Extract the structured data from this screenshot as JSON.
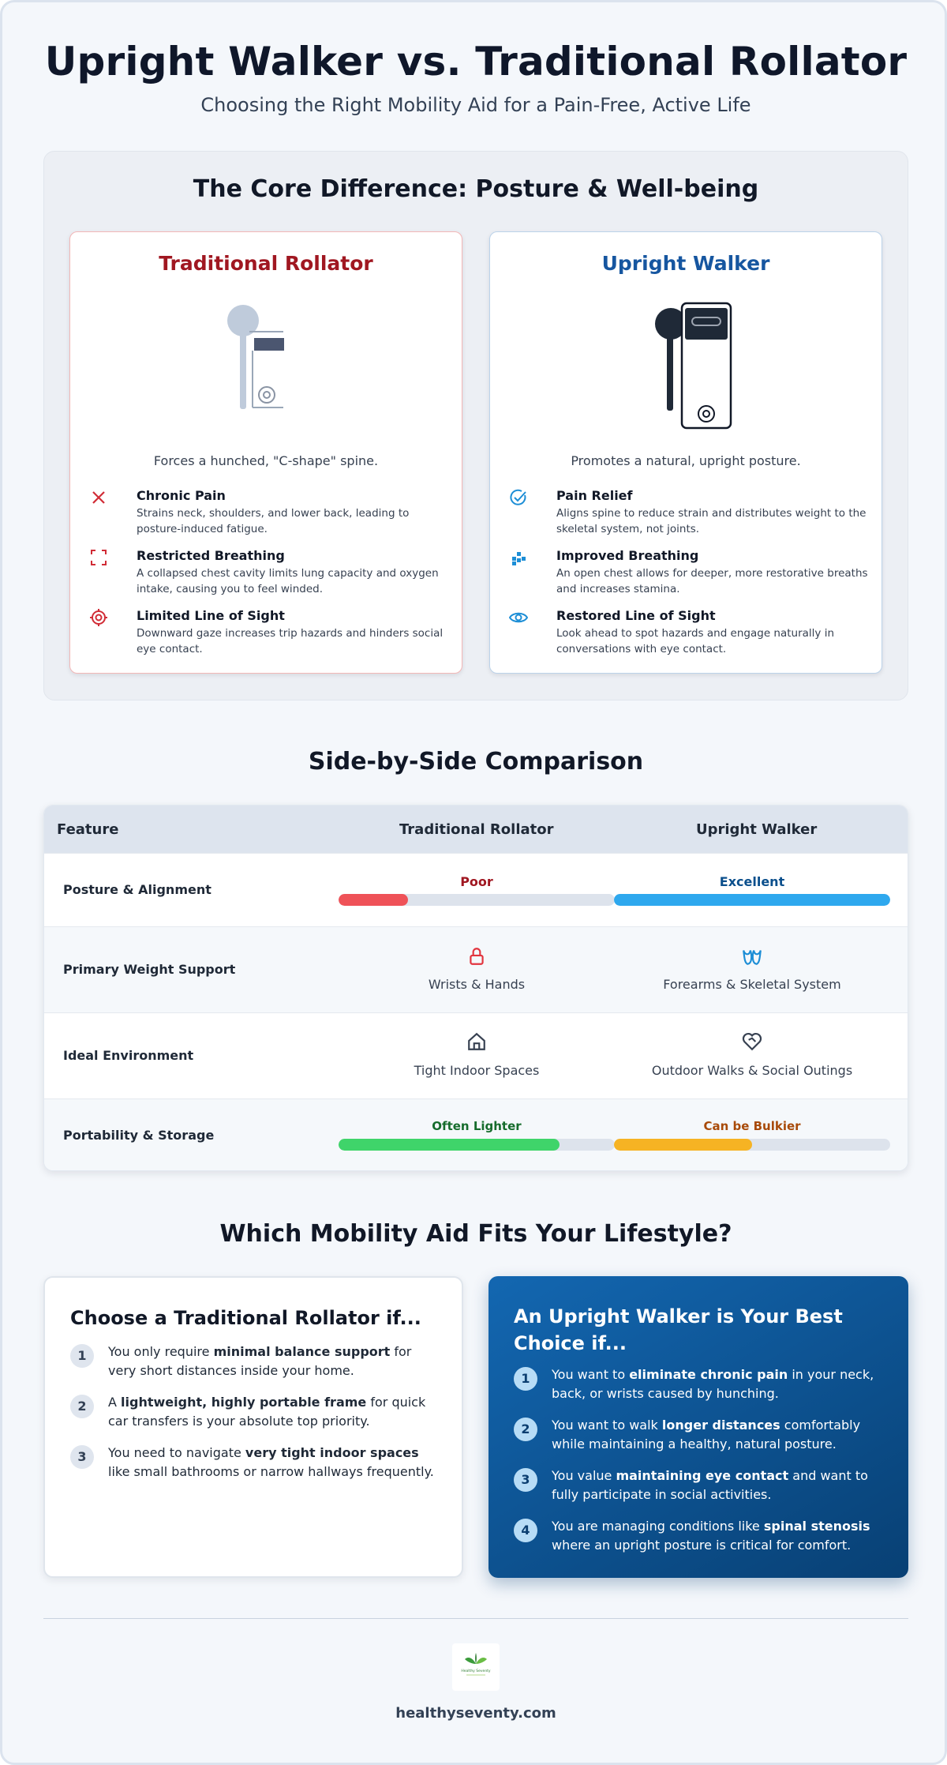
{
  "header": {
    "title": "Upright Walker vs. Traditional Rollator",
    "subtitle": "Choosing the Right Mobility Aid for a Pain-Free, Active Life"
  },
  "core": {
    "title": "The Core Difference: Posture & Well-being",
    "rollator": {
      "title": "Traditional Rollator",
      "caption": "Forces a hunched, \"C-shape\" spine.",
      "points": [
        {
          "icon": "x-icon",
          "title": "Chronic Pain",
          "desc": "Strains neck, shoulders, and lower back, leading to posture-induced fatigue."
        },
        {
          "icon": "compress-icon",
          "title": "Restricted Breathing",
          "desc": "A collapsed chest cavity limits lung capacity and oxygen intake, causing you to feel winded."
        },
        {
          "icon": "eye-slash-icon",
          "title": "Limited Line of Sight",
          "desc": "Downward gaze increases trip hazards and hinders social eye contact."
        }
      ]
    },
    "upright": {
      "title": "Upright Walker",
      "caption": "Promotes a natural, upright posture.",
      "points": [
        {
          "icon": "check-circle-icon",
          "title": "Pain Relief",
          "desc": "Aligns spine to reduce strain and distributes weight to the skeletal system, not joints."
        },
        {
          "icon": "lungs-icon",
          "title": "Improved Breathing",
          "desc": "An open chest allows for deeper, more restorative breaths and increases stamina."
        },
        {
          "icon": "eye-icon",
          "title": "Restored Line of Sight",
          "desc": "Look ahead to spot hazards and engage naturally in conversations with eye contact."
        }
      ]
    }
  },
  "comparison": {
    "title": "Side-by-Side Comparison",
    "headers": {
      "feature": "Feature",
      "rollator": "Traditional Rollator",
      "upright": "Upright Walker"
    },
    "rows": {
      "posture": {
        "label": "Posture & Alignment",
        "rollator": {
          "text": "Poor",
          "level": 0.25,
          "color": "#ef5258",
          "text_color": "#a01721"
        },
        "upright": {
          "text": "Excellent",
          "level": 1.0,
          "color": "#2ea8ee",
          "text_color": "#0b4f8c"
        }
      },
      "weight": {
        "label": "Primary Weight Support",
        "rollator": {
          "icon": "lock-icon",
          "text": "Wrists & Hands"
        },
        "upright": {
          "icon": "forearms-icon",
          "text": "Forearms & Skeletal System"
        }
      },
      "environment": {
        "label": "Ideal Environment",
        "rollator": {
          "icon": "house-icon",
          "text": "Tight Indoor Spaces"
        },
        "upright": {
          "icon": "heart-handshake-icon",
          "text": "Outdoor Walks & Social Outings"
        }
      },
      "portability": {
        "label": "Portability & Storage",
        "rollator": {
          "text": "Often Lighter",
          "level": 0.8,
          "color": "#3fd46a",
          "text_color": "#166c2c"
        },
        "upright": {
          "text": "Can be Bulkier",
          "level": 0.5,
          "color": "#f6b323",
          "text_color": "#a84a09"
        }
      }
    }
  },
  "lifestyle": {
    "title": "Which Mobility Aid Fits Your Lifestyle?",
    "rollator": {
      "title": "Choose a Traditional Rollator if...",
      "items": [
        {
          "num": "1",
          "pre": "You only require ",
          "bold": "minimal balance support",
          "post": " for very short distances inside your home."
        },
        {
          "num": "2",
          "pre": "A ",
          "bold": "lightweight, highly portable frame",
          "post": " for quick car transfers is your absolute top priority."
        },
        {
          "num": "3",
          "pre": "You need to navigate ",
          "bold": "very tight indoor spaces",
          "post": " like small bathrooms or narrow hallways frequently."
        }
      ]
    },
    "upright": {
      "title": "An Upright Walker is Your Best Choice if...",
      "items": [
        {
          "num": "1",
          "pre": "You want to ",
          "bold": "eliminate chronic pain",
          "post": " in your neck, back, or wrists caused by hunching."
        },
        {
          "num": "2",
          "pre": "You want to walk ",
          "bold": "longer distances",
          "post": " comfortably while maintaining a healthy, natural posture."
        },
        {
          "num": "3",
          "pre": "You value ",
          "bold": "maintaining eye contact",
          "post": " and want to fully participate in social activities."
        },
        {
          "num": "4",
          "pre": "You are managing conditions like ",
          "bold": "spinal stenosis",
          "post": " where an upright posture is critical for comfort."
        }
      ]
    }
  },
  "footer": {
    "logo_text": "Healthy Seventy",
    "site": "healthyseventy.com"
  }
}
